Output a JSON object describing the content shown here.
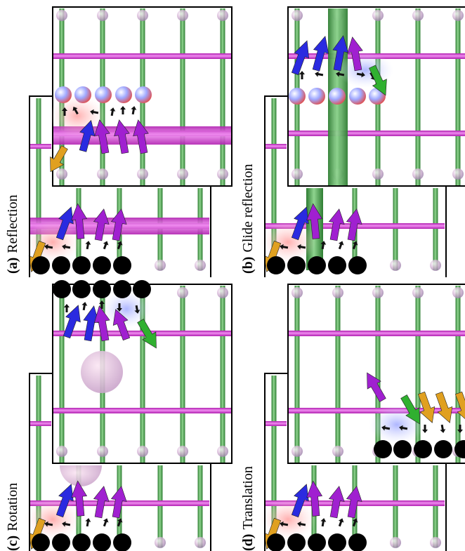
{
  "panels": [
    {
      "tag": "(a)",
      "label": "Reflection"
    },
    {
      "tag": "(b)",
      "label": "Glide reflection"
    },
    {
      "tag": "(c)",
      "label": "Rotation"
    },
    {
      "tag": "(d)",
      "label": "Translation"
    }
  ]
}
